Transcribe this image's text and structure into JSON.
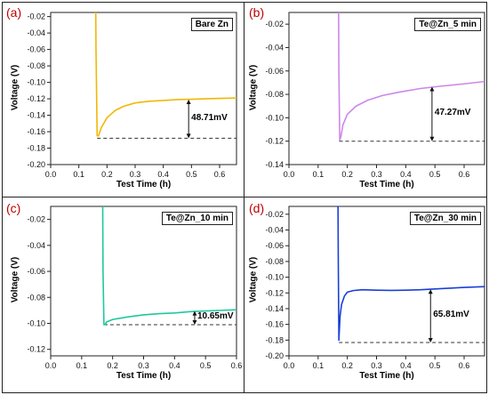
{
  "chart_data": [
    {
      "type": "line",
      "panel_label": "(a)",
      "legend": "Bare Zn",
      "xlabel": "Test Time (h)",
      "ylabel": "Voltage (V)",
      "xlim": [
        0.0,
        0.66
      ],
      "ylim": [
        -0.2,
        -0.015
      ],
      "xticks": [
        0.0,
        0.1,
        0.2,
        0.3,
        0.4,
        0.5,
        0.6
      ],
      "xtick_labels": [
        "0.0",
        "0.1",
        "0.2",
        "0.3",
        "0.4",
        "0.5",
        "0.6"
      ],
      "yticks": [
        -0.02,
        -0.04,
        -0.06,
        -0.08,
        -0.1,
        -0.12,
        -0.14,
        -0.16,
        -0.18,
        -0.2
      ],
      "ytick_labels": [
        "-0.02",
        "-0.04",
        "-0.06",
        "-0.08",
        "-0.10",
        "-0.12",
        "-0.14",
        "-0.16",
        "-0.18",
        "-0.20"
      ],
      "color": "#f2b705",
      "series": [
        {
          "x": [
            0.16,
            0.161,
            0.165,
            0.17,
            0.18,
            0.2,
            0.23,
            0.26,
            0.3,
            0.35,
            0.4,
            0.45,
            0.5,
            0.55,
            0.6,
            0.66
          ],
          "y": [
            -0.013,
            -0.06,
            -0.165,
            -0.165,
            -0.155,
            -0.143,
            -0.134,
            -0.129,
            -0.125,
            -0.123,
            -0.122,
            -0.121,
            -0.1205,
            -0.12,
            -0.1195,
            -0.119
          ]
        }
      ],
      "baseline": {
        "y": -0.168,
        "x": [
          0.165,
          0.66
        ]
      },
      "arrow_x": 0.49,
      "arrow_top": -0.121,
      "annotation": "48.71mV"
    },
    {
      "type": "line",
      "panel_label": "(b)",
      "legend": "Te@Zn_5 min",
      "xlabel": "Test Time (h)",
      "ylabel": "Voltage (V)",
      "xlim": [
        0.0,
        0.67
      ],
      "ylim": [
        -0.14,
        -0.01
      ],
      "xticks": [
        0.0,
        0.1,
        0.2,
        0.3,
        0.4,
        0.5,
        0.6
      ],
      "xtick_labels": [
        "0.0",
        "0.1",
        "0.2",
        "0.3",
        "0.4",
        "0.5",
        "0.6"
      ],
      "yticks": [
        -0.02,
        -0.04,
        -0.06,
        -0.08,
        -0.1,
        -0.12,
        -0.14
      ],
      "ytick_labels": [
        "-0.02",
        "-0.04",
        "-0.06",
        "-0.08",
        "-0.10",
        "-0.12",
        "-0.14"
      ],
      "color": "#cc88e8",
      "series": [
        {
          "x": [
            0.17,
            0.171,
            0.174,
            0.178,
            0.185,
            0.2,
            0.23,
            0.27,
            0.32,
            0.38,
            0.45,
            0.52,
            0.6,
            0.67
          ],
          "y": [
            -0.008,
            -0.06,
            -0.119,
            -0.116,
            -0.106,
            -0.097,
            -0.09,
            -0.085,
            -0.081,
            -0.078,
            -0.075,
            -0.073,
            -0.071,
            -0.069
          ]
        }
      ],
      "baseline": {
        "y": -0.12,
        "x": [
          0.172,
          0.67
        ]
      },
      "arrow_x": 0.49,
      "arrow_top": -0.0735,
      "annotation": "47.27mV"
    },
    {
      "type": "line",
      "panel_label": "(c)",
      "legend": "Te@Zn_10 min",
      "xlabel": "Test Time (h)",
      "ylabel": "Voltage (V)",
      "xlim": [
        0.0,
        0.6
      ],
      "ylim": [
        -0.125,
        -0.01
      ],
      "xticks": [
        0.0,
        0.1,
        0.2,
        0.3,
        0.4,
        0.5,
        0.6
      ],
      "xtick_labels": [
        "0.0",
        "0.1",
        "0.2",
        "0.3",
        "0.4",
        "0.5",
        "0.6"
      ],
      "yticks": [
        -0.02,
        -0.04,
        -0.06,
        -0.08,
        -0.1,
        -0.12
      ],
      "ytick_labels": [
        "-0.02",
        "-0.04",
        "-0.06",
        "-0.08",
        "-0.10",
        "-0.12"
      ],
      "color": "#1fc99a",
      "series": [
        {
          "x": [
            0.168,
            0.169,
            0.172,
            0.176,
            0.18,
            0.2,
            0.25,
            0.3,
            0.35,
            0.4,
            0.45,
            0.5,
            0.55,
            0.6
          ],
          "y": [
            -0.008,
            -0.06,
            -0.101,
            -0.101,
            -0.099,
            -0.097,
            -0.095,
            -0.0935,
            -0.0925,
            -0.092,
            -0.091,
            -0.0905,
            -0.09,
            -0.0895
          ]
        }
      ],
      "baseline": {
        "y": -0.101,
        "x": [
          0.172,
          0.6
        ]
      },
      "arrow_x": 0.465,
      "arrow_top": -0.0905,
      "annotation": "10.65mV"
    },
    {
      "type": "line",
      "panel_label": "(d)",
      "legend": "Te@Zn_30 min",
      "xlabel": "Test Time (h)",
      "ylabel": "Voltage (V)",
      "xlim": [
        0.0,
        0.67
      ],
      "ylim": [
        -0.2,
        -0.01
      ],
      "xticks": [
        0.0,
        0.1,
        0.2,
        0.3,
        0.4,
        0.5,
        0.6
      ],
      "xtick_labels": [
        "0.0",
        "0.1",
        "0.2",
        "0.3",
        "0.4",
        "0.5",
        "0.6"
      ],
      "yticks": [
        -0.02,
        -0.04,
        -0.06,
        -0.08,
        -0.1,
        -0.12,
        -0.14,
        -0.16,
        -0.18,
        -0.2
      ],
      "ytick_labels": [
        "-0.02",
        "-0.04",
        "-0.06",
        "-0.08",
        "-0.10",
        "-0.12",
        "-0.14",
        "-0.16",
        "-0.18",
        "-0.20"
      ],
      "color": "#1a3fd6",
      "series": [
        {
          "x": [
            0.168,
            0.169,
            0.171,
            0.175,
            0.18,
            0.19,
            0.2,
            0.22,
            0.25,
            0.3,
            0.35,
            0.4,
            0.45,
            0.5,
            0.55,
            0.6,
            0.67
          ],
          "y": [
            -0.008,
            -0.08,
            -0.18,
            -0.15,
            -0.135,
            -0.124,
            -0.119,
            -0.117,
            -0.116,
            -0.1165,
            -0.1168,
            -0.1165,
            -0.116,
            -0.115,
            -0.114,
            -0.113,
            -0.112
          ]
        }
      ],
      "baseline": {
        "y": -0.183,
        "x": [
          0.171,
          0.67
        ]
      },
      "arrow_x": 0.485,
      "arrow_top": -0.1155,
      "annotation": "65.81mV"
    }
  ]
}
